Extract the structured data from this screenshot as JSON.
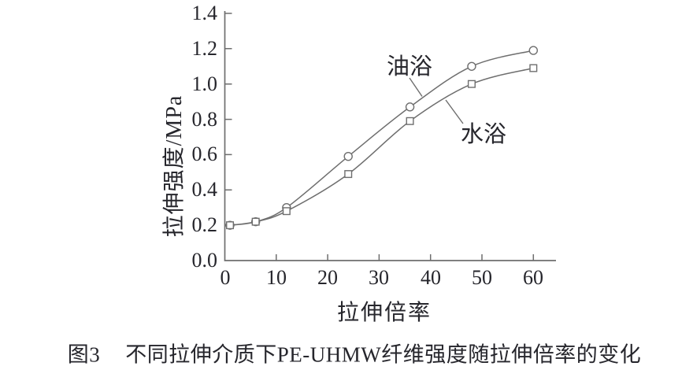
{
  "figure": {
    "caption_label": "图3",
    "caption_text": "不同拉伸介质下PE-UHMW纤维强度随拉伸倍率的变化"
  },
  "chart_data": {
    "type": "line",
    "title": "",
    "xlabel": "拉伸倍率",
    "ylabel": "拉伸强度/MPa",
    "xlim": [
      0,
      64
    ],
    "ylim": [
      0.0,
      1.4
    ],
    "xticks": [
      0,
      10,
      20,
      30,
      40,
      50,
      60
    ],
    "ytick_labels": [
      "0.0",
      "0.2",
      "0.4",
      "0.6",
      "0.8",
      "1.0",
      "1.2",
      "1.4"
    ],
    "grid": false,
    "legend_position": "inline-annotations-with-leader-lines",
    "x": [
      1,
      6,
      12,
      24,
      36,
      48,
      60
    ],
    "series": [
      {
        "name": "油浴",
        "marker": "circle",
        "values": [
          0.2,
          0.22,
          0.3,
          0.59,
          0.87,
          1.1,
          1.19
        ]
      },
      {
        "name": "水浴",
        "marker": "square",
        "values": [
          0.2,
          0.22,
          0.28,
          0.49,
          0.79,
          1.0,
          1.09
        ]
      }
    ],
    "colors": {
      "line": "#6e6e6e",
      "marker_fill": "#ffffff",
      "text": "#26262c"
    }
  }
}
